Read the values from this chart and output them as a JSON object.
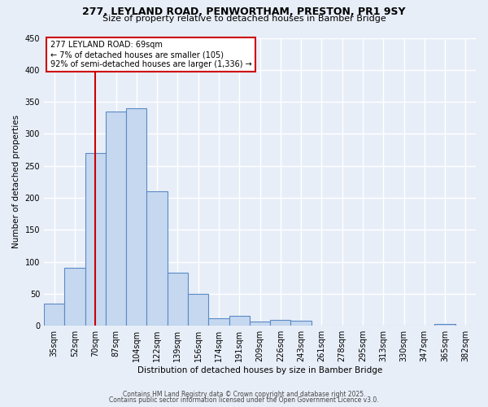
{
  "title1": "277, LEYLAND ROAD, PENWORTHAM, PRESTON, PR1 9SY",
  "title2": "Size of property relative to detached houses in Bamber Bridge",
  "xlabel": "Distribution of detached houses by size in Bamber Bridge",
  "ylabel": "Number of detached properties",
  "categories": [
    "35sqm",
    "52sqm",
    "70sqm",
    "87sqm",
    "104sqm",
    "122sqm",
    "139sqm",
    "156sqm",
    "174sqm",
    "191sqm",
    "209sqm",
    "226sqm",
    "243sqm",
    "261sqm",
    "278sqm",
    "295sqm",
    "313sqm",
    "330sqm",
    "347sqm",
    "365sqm",
    "382sqm"
  ],
  "values": [
    35,
    90,
    270,
    335,
    340,
    210,
    83,
    50,
    12,
    15,
    7,
    9,
    8,
    0,
    0,
    0,
    0,
    0,
    0,
    3,
    0
  ],
  "bar_color": "#c5d8f0",
  "bar_edge_color": "#5b8ac5",
  "vline_x_index": 2,
  "vline_color": "#cc0000",
  "annotation_text": "277 LEYLAND ROAD: 69sqm\n← 7% of detached houses are smaller (105)\n92% of semi-detached houses are larger (1,336) →",
  "annotation_box_color": "#ffffff",
  "annotation_box_edge": "#cc0000",
  "ylim": [
    0,
    450
  ],
  "yticks": [
    0,
    50,
    100,
    150,
    200,
    250,
    300,
    350,
    400,
    450
  ],
  "background_color": "#e8eef8",
  "grid_color": "#ffffff",
  "footer1": "Contains HM Land Registry data © Crown copyright and database right 2025.",
  "footer2": "Contains public sector information licensed under the Open Government Licence v3.0."
}
